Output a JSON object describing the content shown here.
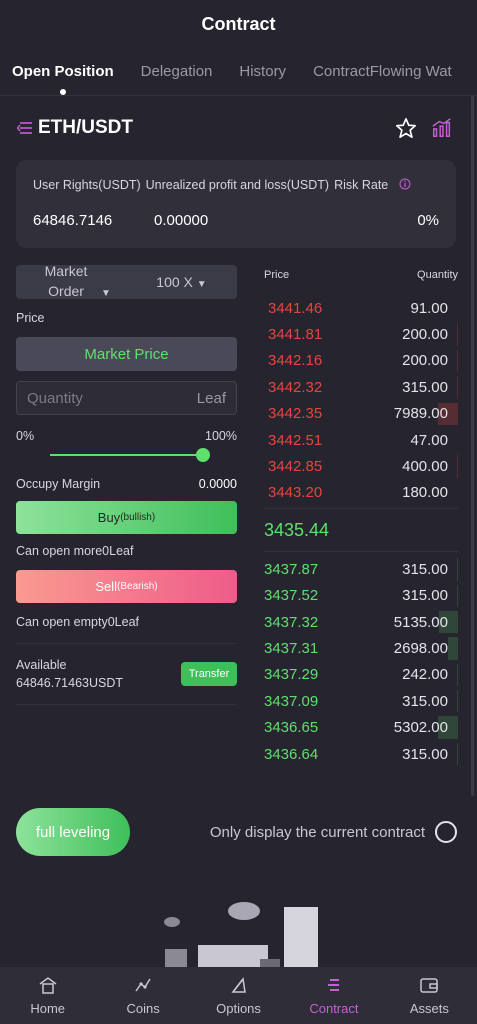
{
  "header": {
    "title": "Contract"
  },
  "tabs": [
    {
      "label": "Open Position"
    },
    {
      "label": "Delegation"
    },
    {
      "label": "History"
    },
    {
      "label": "ContractFlowing Wat"
    }
  ],
  "pair": {
    "name": "ETH/USDT"
  },
  "rights": {
    "label_user_rights": "User Rights(USDT)",
    "label_unrealized": "Unrealized profit and loss(USDT)",
    "label_risk": "Risk Rate",
    "value_user_rights": "64846.7146",
    "value_unrealized": "0.00000",
    "value_risk": "0%"
  },
  "order_form": {
    "order_type": "Market Order",
    "leverage": "100 X",
    "price_label": "Price",
    "market_price_label": "Market Price",
    "quantity_placeholder": "Quantity",
    "quantity_unit": "Leaf",
    "slider_min": "0%",
    "slider_max": "100%",
    "slider_fraction": 1.0,
    "occupy_margin_label": "Occupy Margin",
    "occupy_margin_value": "0.0000",
    "buy_label": "Buy",
    "buy_sub": "(bullish)",
    "can_open_more": "Can open more0Leaf",
    "sell_label": "Sell",
    "sell_sub": "(Bearish)",
    "can_open_empty": "Can open empty0Leaf",
    "available_label": "Available",
    "available_value": "64846.71463USDT",
    "transfer_label": "Transfer"
  },
  "order_book": {
    "price_header": "Price",
    "quantity_header": "Quantity",
    "asks": [
      {
        "price": "3441.46",
        "qty": "91.00"
      },
      {
        "price": "3441.81",
        "qty": "200.00"
      },
      {
        "price": "3442.16",
        "qty": "200.00"
      },
      {
        "price": "3442.32",
        "qty": "315.00"
      },
      {
        "price": "3442.35",
        "qty": "7989.00"
      },
      {
        "price": "3442.51",
        "qty": "47.00"
      },
      {
        "price": "3442.85",
        "qty": "400.00"
      },
      {
        "price": "3443.20",
        "qty": "180.00"
      }
    ],
    "last_price": "3435.44",
    "bids": [
      {
        "price": "3437.87",
        "qty": "315.00"
      },
      {
        "price": "3437.52",
        "qty": "315.00"
      },
      {
        "price": "3437.32",
        "qty": "5135.00"
      },
      {
        "price": "3437.31",
        "qty": "2698.00"
      },
      {
        "price": "3437.29",
        "qty": "242.00"
      },
      {
        "price": "3437.09",
        "qty": "315.00"
      },
      {
        "price": "3436.65",
        "qty": "5302.00"
      },
      {
        "price": "3436.64",
        "qty": "315.00"
      }
    ]
  },
  "bottom": {
    "full_leveling": "full leveling",
    "only_display": "Only display the current contract"
  },
  "nav": [
    {
      "label": "Home",
      "icon": "home-icon"
    },
    {
      "label": "Coins",
      "icon": "coins-icon"
    },
    {
      "label": "Options",
      "icon": "options-icon"
    },
    {
      "label": "Contract",
      "icon": "contract-icon"
    },
    {
      "label": "Assets",
      "icon": "assets-icon"
    }
  ],
  "colors": {
    "green": "#5ee06c",
    "red": "#e4463f",
    "accent": "#c95fd6"
  }
}
